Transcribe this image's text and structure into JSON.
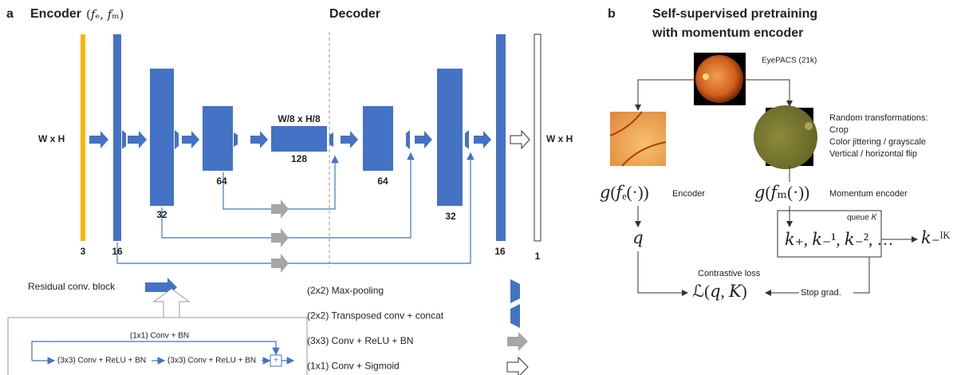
{
  "panel_a": {
    "label": "a",
    "encoder_title": "Encoder",
    "encoder_params": "(𝑓ₑ, 𝑓ₘ)",
    "decoder_title": "Decoder",
    "input_size": "W x H",
    "output_size": "W x H",
    "bottleneck_size": "W/8 x H/8",
    "channels": [
      "3",
      "16",
      "32",
      "64",
      "128",
      "64",
      "32",
      "16",
      "1"
    ],
    "residual_block": {
      "label": "Residual conv. block",
      "skip": "(1x1) Conv + BN",
      "conv_1": "(3x3) Conv + ReLU + BN",
      "conv_2": "(3x3) Conv + ReLU + BN",
      "add": "+"
    },
    "legend": [
      "(2x2) Max-pooling",
      "(2x2) Transposed conv + concat",
      "(3x3) Conv + ReLU + BN",
      "(1x1) Conv + Sigmoid"
    ]
  },
  "panel_b": {
    "label": "b",
    "title": [
      "Self-supervised pretraining",
      "with momentum encoder"
    ],
    "dataset": "EyePACS (21k)",
    "transformations": [
      "Random transformations:",
      "Crop",
      "Color jittering / grayscale",
      "Vertical / horizontal flip"
    ],
    "encoder_formula": "𝑔(𝑓ₑ(·))",
    "encoder_label": "Encoder",
    "momentum_formula": "𝑔(𝑓ₘ(·))",
    "momentum_label": "Momentum encoder",
    "query": "𝑞",
    "queue_label": "queue 𝐾",
    "keys": "𝑘₊, 𝑘₋¹, 𝑘₋², …",
    "last_key": "𝑘₋ˡᴷ",
    "loss_label": "Contrastive loss",
    "loss": "ℒ(𝑞, 𝐾)",
    "stop_grad": "Stop grad."
  }
}
